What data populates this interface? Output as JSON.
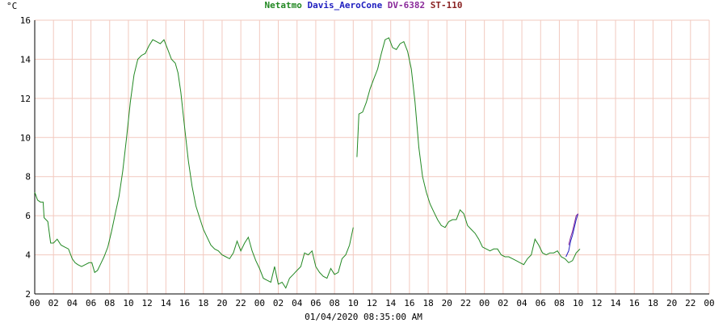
{
  "chart_data": {
    "type": "line",
    "title": "",
    "ylabel": "°C",
    "xlabel": "01/04/2020 08:35:00 AM",
    "ylim": [
      2,
      16
    ],
    "yticks": [
      2,
      4,
      6,
      8,
      10,
      12,
      14,
      16
    ],
    "xlim": [
      0,
      72
    ],
    "xticks": [
      0,
      2,
      4,
      6,
      8,
      10,
      12,
      14,
      16,
      18,
      20,
      22,
      24,
      26,
      28,
      30,
      32,
      34,
      36,
      38,
      40,
      42,
      44,
      46,
      48,
      50,
      52,
      54,
      56,
      58,
      60,
      62,
      64,
      66,
      68,
      70,
      72
    ],
    "xtick_labels": [
      "00",
      "02",
      "04",
      "06",
      "08",
      "10",
      "12",
      "14",
      "16",
      "18",
      "20",
      "22",
      "00",
      "02",
      "04",
      "06",
      "08",
      "10",
      "12",
      "14",
      "16",
      "18",
      "20",
      "22",
      "00",
      "02",
      "04",
      "06",
      "08",
      "10",
      "12",
      "14",
      "16",
      "18",
      "20",
      "22",
      "00"
    ],
    "grid": true,
    "legend": {
      "placement": "top-center",
      "entries": [
        {
          "name": "Netatmo",
          "color": "#228822"
        },
        {
          "name": "Davis_AeroCone",
          "color": "#2020c0"
        },
        {
          "name": "DV-6382",
          "color": "#8a2a9a"
        },
        {
          "name": "ST-110",
          "color": "#8a2222"
        }
      ]
    },
    "series": [
      {
        "name": "Netatmo",
        "color": "#228822",
        "segments": [
          [
            [
              0,
              7.2
            ],
            [
              0.3,
              6.8
            ],
            [
              0.6,
              6.7
            ],
            [
              0.9,
              6.7
            ],
            [
              1.0,
              5.9
            ],
            [
              1.4,
              5.7
            ],
            [
              1.7,
              4.6
            ],
            [
              2.0,
              4.6
            ],
            [
              2.4,
              4.8
            ],
            [
              2.8,
              4.5
            ],
            [
              3.2,
              4.4
            ],
            [
              3.6,
              4.3
            ],
            [
              4.0,
              3.8
            ],
            [
              4.3,
              3.6
            ],
            [
              4.6,
              3.5
            ],
            [
              5.0,
              3.4
            ],
            [
              5.4,
              3.5
            ],
            [
              5.8,
              3.6
            ],
            [
              6.1,
              3.6
            ],
            [
              6.4,
              3.1
            ],
            [
              6.7,
              3.2
            ],
            [
              7.0,
              3.5
            ],
            [
              7.4,
              3.9
            ],
            [
              7.8,
              4.4
            ],
            [
              8.2,
              5.2
            ],
            [
              8.6,
              6.1
            ],
            [
              9.0,
              7.0
            ],
            [
              9.4,
              8.3
            ],
            [
              9.8,
              10.0
            ],
            [
              10.2,
              11.8
            ],
            [
              10.6,
              13.2
            ],
            [
              11.0,
              14.0
            ],
            [
              11.4,
              14.2
            ],
            [
              11.8,
              14.3
            ],
            [
              12.2,
              14.7
            ],
            [
              12.6,
              15.0
            ],
            [
              13.0,
              14.9
            ],
            [
              13.4,
              14.8
            ],
            [
              13.8,
              15.0
            ],
            [
              14.2,
              14.5
            ],
            [
              14.6,
              14.0
            ],
            [
              15.0,
              13.8
            ],
            [
              15.3,
              13.3
            ],
            [
              15.6,
              12.3
            ],
            [
              16.0,
              10.5
            ],
            [
              16.4,
              8.8
            ],
            [
              16.8,
              7.5
            ],
            [
              17.2,
              6.5
            ],
            [
              17.6,
              5.9
            ],
            [
              18.0,
              5.3
            ],
            [
              18.4,
              4.9
            ],
            [
              18.8,
              4.5
            ],
            [
              19.2,
              4.3
            ],
            [
              19.6,
              4.2
            ],
            [
              20.0,
              4.0
            ],
            [
              20.4,
              3.9
            ],
            [
              20.8,
              3.8
            ],
            [
              21.2,
              4.1
            ],
            [
              21.6,
              4.7
            ],
            [
              22.0,
              4.2
            ],
            [
              22.4,
              4.6
            ],
            [
              22.8,
              4.9
            ],
            [
              23.2,
              4.2
            ],
            [
              23.6,
              3.7
            ],
            [
              24.0,
              3.3
            ],
            [
              24.4,
              2.8
            ],
            [
              24.8,
              2.7
            ],
            [
              25.2,
              2.6
            ],
            [
              25.6,
              3.4
            ],
            [
              26.0,
              2.5
            ],
            [
              26.4,
              2.6
            ],
            [
              26.8,
              2.3
            ],
            [
              27.2,
              2.8
            ],
            [
              27.6,
              3.0
            ],
            [
              28.0,
              3.2
            ],
            [
              28.4,
              3.4
            ],
            [
              28.8,
              4.1
            ],
            [
              29.2,
              4.0
            ],
            [
              29.6,
              4.2
            ],
            [
              30.0,
              3.4
            ],
            [
              30.4,
              3.1
            ],
            [
              30.8,
              2.9
            ],
            [
              31.2,
              2.8
            ],
            [
              31.6,
              3.3
            ],
            [
              32.0,
              3.0
            ],
            [
              32.4,
              3.1
            ],
            [
              32.8,
              3.8
            ],
            [
              33.2,
              4.0
            ],
            [
              33.6,
              4.5
            ],
            [
              34.0,
              5.4
            ]
          ],
          [
            [
              34.4,
              9.0
            ],
            [
              34.6,
              11.2
            ],
            [
              35.0,
              11.3
            ],
            [
              35.4,
              11.8
            ],
            [
              35.8,
              12.5
            ],
            [
              36.2,
              13.0
            ],
            [
              36.6,
              13.5
            ],
            [
              37.0,
              14.3
            ],
            [
              37.4,
              15.0
            ],
            [
              37.8,
              15.1
            ],
            [
              38.2,
              14.6
            ],
            [
              38.6,
              14.5
            ],
            [
              39.0,
              14.8
            ],
            [
              39.4,
              14.9
            ],
            [
              39.8,
              14.4
            ],
            [
              40.2,
              13.5
            ],
            [
              40.6,
              11.8
            ],
            [
              41.0,
              9.5
            ],
            [
              41.4,
              8.0
            ],
            [
              41.8,
              7.2
            ],
            [
              42.2,
              6.6
            ],
            [
              42.6,
              6.2
            ],
            [
              43.0,
              5.8
            ],
            [
              43.4,
              5.5
            ],
            [
              43.8,
              5.4
            ],
            [
              44.2,
              5.7
            ],
            [
              44.6,
              5.8
            ],
            [
              45.0,
              5.8
            ],
            [
              45.4,
              6.3
            ],
            [
              45.8,
              6.1
            ],
            [
              46.2,
              5.5
            ],
            [
              46.6,
              5.3
            ],
            [
              47.0,
              5.1
            ],
            [
              47.4,
              4.8
            ],
            [
              47.8,
              4.4
            ],
            [
              48.2,
              4.3
            ],
            [
              48.6,
              4.2
            ],
            [
              49.0,
              4.3
            ],
            [
              49.4,
              4.3
            ],
            [
              49.8,
              4.0
            ],
            [
              50.2,
              3.9
            ],
            [
              50.6,
              3.9
            ],
            [
              51.0,
              3.8
            ],
            [
              51.4,
              3.7
            ],
            [
              51.8,
              3.6
            ],
            [
              52.2,
              3.5
            ],
            [
              52.6,
              3.8
            ],
            [
              53.0,
              4.0
            ],
            [
              53.4,
              4.8
            ],
            [
              53.8,
              4.5
            ],
            [
              54.2,
              4.1
            ],
            [
              54.6,
              4.0
            ],
            [
              55.0,
              4.1
            ],
            [
              55.4,
              4.1
            ],
            [
              55.8,
              4.2
            ],
            [
              56.2,
              3.9
            ],
            [
              56.6,
              3.8
            ],
            [
              57.0,
              3.6
            ],
            [
              57.4,
              3.7
            ],
            [
              57.8,
              4.1
            ],
            [
              58.2,
              4.3
            ]
          ]
        ]
      },
      {
        "name": "Davis_AeroCone",
        "color": "#2020c0",
        "segments": [
          [
            [
              56.7,
              3.9
            ],
            [
              57.0,
              4.2
            ],
            [
              57.2,
              4.7
            ],
            [
              57.4,
              5.0
            ],
            [
              57.6,
              5.4
            ],
            [
              57.8,
              5.8
            ],
            [
              58.0,
              6.1
            ]
          ]
        ]
      },
      {
        "name": "DV-6382",
        "color": "#8a2a9a",
        "segments": [
          [
            [
              57.0,
              4.5
            ],
            [
              57.2,
              4.9
            ],
            [
              57.4,
              5.2
            ],
            [
              57.6,
              5.6
            ],
            [
              57.8,
              6.0
            ],
            [
              58.0,
              6.1
            ]
          ]
        ]
      }
    ]
  }
}
